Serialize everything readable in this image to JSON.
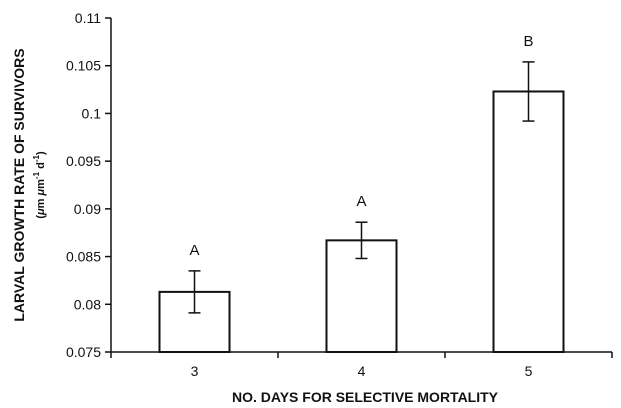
{
  "chart_data": {
    "type": "bar",
    "categories": [
      "3",
      "4",
      "5"
    ],
    "values": [
      0.0813,
      0.0867,
      0.1023
    ],
    "error": [
      0.0022,
      0.0019,
      0.0031
    ],
    "group_labels": [
      "A",
      "A",
      "B"
    ],
    "xlabel": "NO. DAYS FOR SELECTIVE MORTALITY",
    "ylabel": "LARVAL GROWTH RATE OF SURVIVORS",
    "ylabel_units": {
      "open": "(",
      "mu1": "μ",
      "m1": "m",
      "mu2": "μ",
      "m2": "m",
      "exp1": "-1",
      "d": " d",
      "exp2": "-1",
      "close": ")"
    },
    "ylim": [
      0.075,
      0.11
    ],
    "yticks": [
      "0.075",
      "0.08",
      "0.085",
      "0.09",
      "0.095",
      "0.1",
      "0.105",
      "0.11"
    ],
    "bar_color": "#ffffff",
    "stroke_color": "#111111",
    "grid": false,
    "legend": "none"
  }
}
